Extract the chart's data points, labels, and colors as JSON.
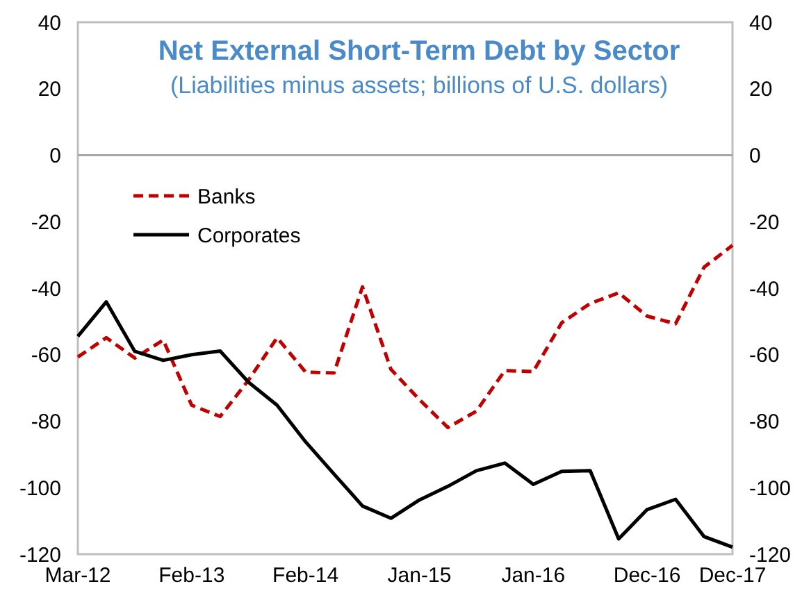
{
  "chart_data": {
    "type": "line",
    "title": "Net External Short-Term Debt by Sector",
    "subtitle": "(Liabilities minus assets; billions of U.S. dollars)",
    "categories": [
      "Mar-12",
      null,
      null,
      null,
      "Feb-13",
      null,
      null,
      null,
      "Feb-14",
      null,
      null,
      null,
      "Jan-15",
      null,
      null,
      null,
      "Jan-16",
      null,
      null,
      null,
      "Dec-16",
      null,
      null,
      "Dec-17"
    ],
    "series": [
      {
        "name": "Banks",
        "color": "#c00000",
        "line_style": "dashed",
        "values": [
          -60.7,
          -54.9,
          -61,
          -55.6,
          -75.2,
          -78.6,
          -67.6,
          -54.9,
          -65.2,
          -65.5,
          -39.6,
          -64.4,
          -73.5,
          -81.9,
          -77,
          -64.8,
          -65.1,
          -50.4,
          -44.6,
          -41.4,
          -48.4,
          -50.7,
          -33.7,
          -27.1
        ]
      },
      {
        "name": "Corporates",
        "color": "#000000",
        "line_style": "solid",
        "values": [
          -54.5,
          -44.1,
          -59,
          -61.7,
          -60,
          -58.9,
          -68.3,
          -75.2,
          -86.2,
          -95.9,
          -105.5,
          -109.2,
          -103.7,
          -99.6,
          -94.9,
          -92.6,
          -99,
          -95.1,
          -94.9,
          -115.4,
          -106.6,
          -103.5,
          -114.7,
          -117.9
        ]
      }
    ],
    "ylim": [
      -120,
      40
    ],
    "yticks": [
      -120,
      -100,
      -80,
      -60,
      -40,
      -20,
      0,
      20,
      40
    ],
    "y2lim": [
      -120,
      40
    ],
    "y2ticks": [
      -120,
      -100,
      -80,
      -60,
      -40,
      -20,
      0,
      20,
      40
    ],
    "ref_lines": [
      {
        "axis": "y",
        "value": 0,
        "color": "#a6a6a6"
      }
    ],
    "legend": "top left",
    "grid": false
  }
}
